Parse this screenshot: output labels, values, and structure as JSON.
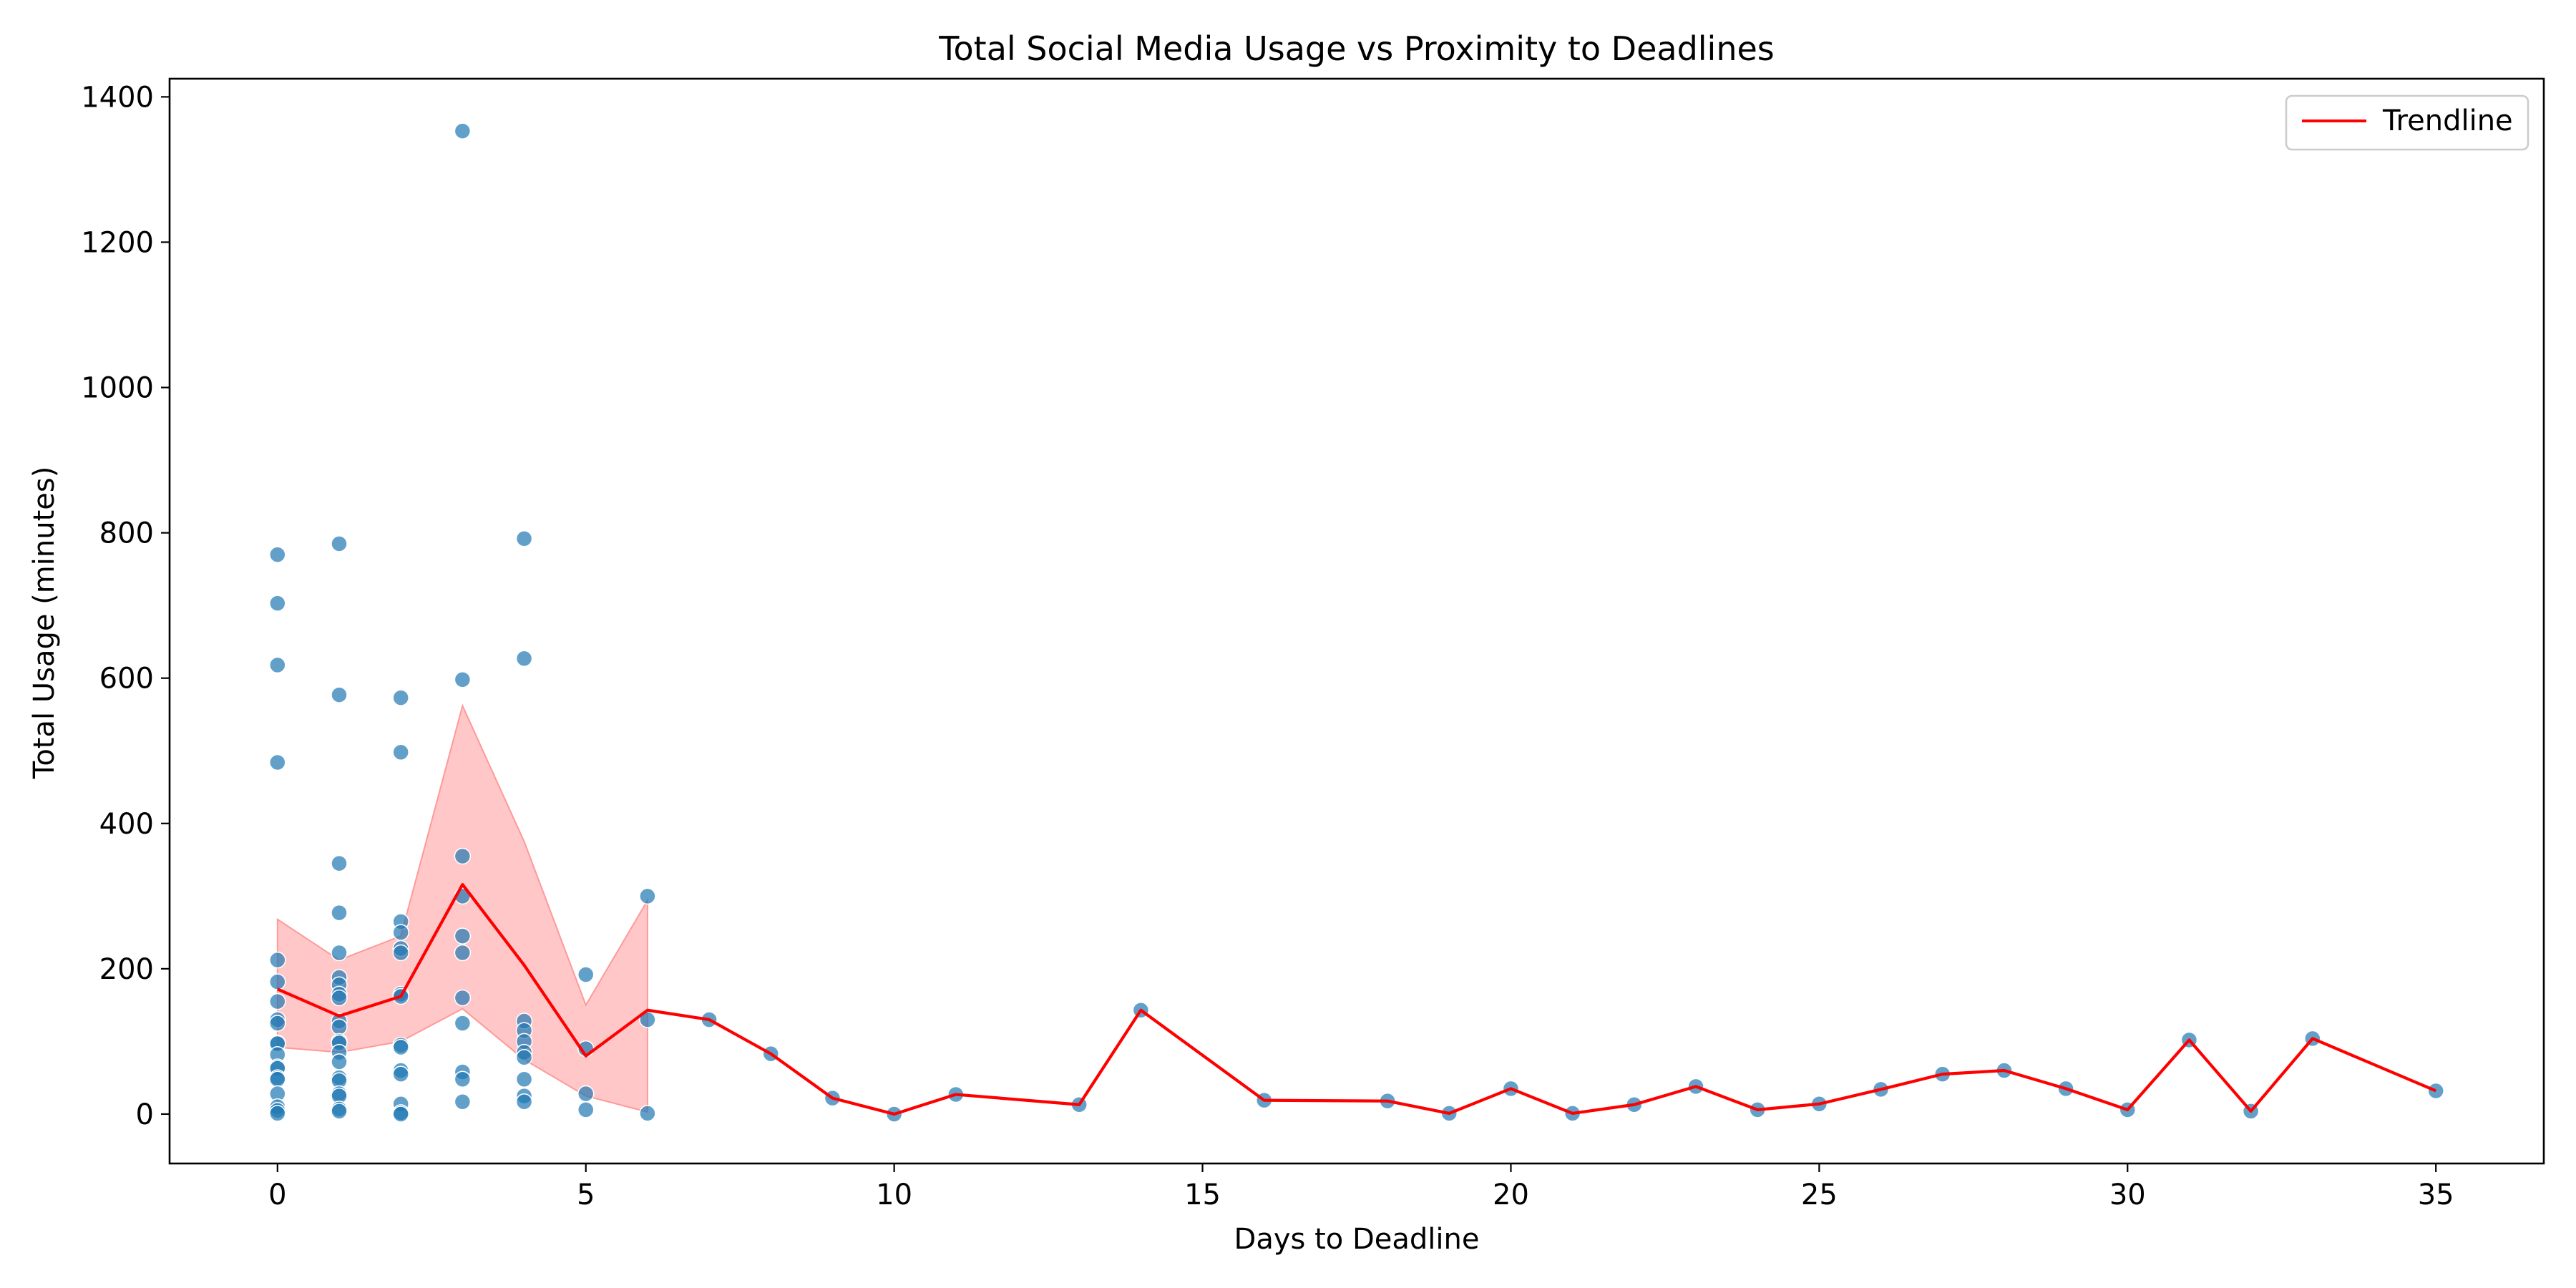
{
  "chart_data": {
    "type": "scatter",
    "title": "Total Social Media Usage vs Proximity to Deadlines",
    "xlabel": "Days to Deadline",
    "ylabel": "Total Usage (minutes)",
    "xlim": [
      -1.75,
      36.75
    ],
    "ylim": [
      -68,
      1425
    ],
    "x_ticks": [
      0,
      5,
      10,
      15,
      20,
      25,
      30,
      35
    ],
    "y_ticks": [
      0,
      200,
      400,
      600,
      800,
      1000,
      1200,
      1400
    ],
    "grid": false,
    "legend_position": "top-right",
    "colors": {
      "points": "#1f77b4",
      "trendline": "#ff0000",
      "band": "#ff9999"
    },
    "points": [
      [
        0,
        770
      ],
      [
        0,
        703
      ],
      [
        0,
        618
      ],
      [
        0,
        484
      ],
      [
        0,
        212
      ],
      [
        0,
        182
      ],
      [
        0,
        155
      ],
      [
        0,
        130
      ],
      [
        0,
        125
      ],
      [
        0,
        98
      ],
      [
        0,
        97
      ],
      [
        0,
        82
      ],
      [
        0,
        65
      ],
      [
        0,
        63
      ],
      [
        0,
        50
      ],
      [
        0,
        48
      ],
      [
        0,
        28
      ],
      [
        0,
        10
      ],
      [
        0,
        5
      ],
      [
        0,
        1
      ],
      [
        1,
        785
      ],
      [
        1,
        577
      ],
      [
        1,
        345
      ],
      [
        1,
        277
      ],
      [
        1,
        222
      ],
      [
        1,
        188
      ],
      [
        1,
        178
      ],
      [
        1,
        165
      ],
      [
        1,
        160
      ],
      [
        1,
        128
      ],
      [
        1,
        120
      ],
      [
        1,
        100
      ],
      [
        1,
        98
      ],
      [
        1,
        85
      ],
      [
        1,
        72
      ],
      [
        1,
        50
      ],
      [
        1,
        46
      ],
      [
        1,
        28
      ],
      [
        1,
        25
      ],
      [
        1,
        7
      ],
      [
        1,
        4
      ],
      [
        2,
        573
      ],
      [
        2,
        498
      ],
      [
        2,
        265
      ],
      [
        2,
        250
      ],
      [
        2,
        228
      ],
      [
        2,
        222
      ],
      [
        2,
        165
      ],
      [
        2,
        162
      ],
      [
        2,
        95
      ],
      [
        2,
        92
      ],
      [
        2,
        60
      ],
      [
        2,
        55
      ],
      [
        2,
        14
      ],
      [
        2,
        2
      ],
      [
        2,
        0
      ],
      [
        3,
        1353
      ],
      [
        3,
        598
      ],
      [
        3,
        355
      ],
      [
        3,
        300
      ],
      [
        3,
        245
      ],
      [
        3,
        222
      ],
      [
        3,
        160
      ],
      [
        3,
        125
      ],
      [
        3,
        58
      ],
      [
        3,
        48
      ],
      [
        3,
        17
      ],
      [
        4,
        792
      ],
      [
        4,
        627
      ],
      [
        4,
        128
      ],
      [
        4,
        115
      ],
      [
        4,
        100
      ],
      [
        4,
        85
      ],
      [
        4,
        78
      ],
      [
        4,
        48
      ],
      [
        4,
        25
      ],
      [
        4,
        17
      ],
      [
        5,
        192
      ],
      [
        5,
        90
      ],
      [
        5,
        28
      ],
      [
        5,
        6
      ],
      [
        6,
        300
      ],
      [
        6,
        130
      ],
      [
        6,
        1
      ],
      [
        7,
        130
      ],
      [
        8,
        83
      ],
      [
        9,
        22
      ],
      [
        10,
        0
      ],
      [
        11,
        27
      ],
      [
        13,
        13
      ],
      [
        14,
        143
      ],
      [
        16,
        19
      ],
      [
        18,
        18
      ],
      [
        19,
        1
      ],
      [
        20,
        35
      ],
      [
        21,
        1
      ],
      [
        22,
        13
      ],
      [
        23,
        38
      ],
      [
        24,
        6
      ],
      [
        25,
        14
      ],
      [
        26,
        34
      ],
      [
        27,
        55
      ],
      [
        28,
        60
      ],
      [
        29,
        35
      ],
      [
        30,
        6
      ],
      [
        31,
        102
      ],
      [
        32,
        4
      ],
      [
        33,
        104
      ],
      [
        35,
        32
      ]
    ],
    "series": [
      {
        "name": "Trendline",
        "x": [
          0,
          1,
          2,
          3,
          4,
          5,
          6,
          7,
          8,
          9,
          10,
          11,
          13,
          14,
          16,
          18,
          19,
          20,
          21,
          22,
          23,
          24,
          25,
          26,
          27,
          28,
          29,
          30,
          31,
          32,
          33,
          35
        ],
        "values": [
          172,
          135,
          162,
          316,
          205,
          80,
          143,
          130,
          83,
          22,
          0,
          27,
          13,
          143,
          19,
          18,
          1,
          35,
          1,
          13,
          38,
          6,
          14,
          34,
          55,
          60,
          35,
          6,
          102,
          4,
          104,
          32
        ]
      }
    ],
    "confidence_band": {
      "x": [
        0,
        1,
        2,
        3,
        4,
        5,
        6
      ],
      "lower": [
        92,
        85,
        100,
        145,
        75,
        25,
        3
      ],
      "upper": [
        268,
        212,
        245,
        562,
        375,
        150,
        294
      ]
    }
  }
}
